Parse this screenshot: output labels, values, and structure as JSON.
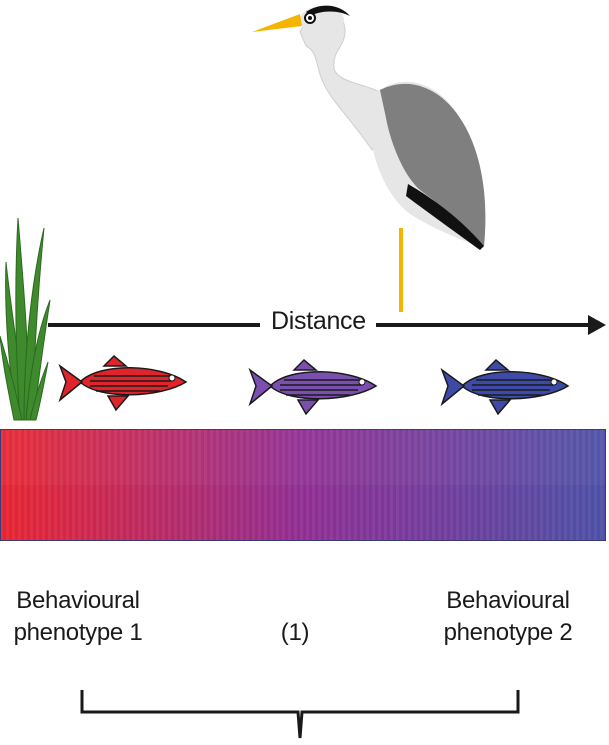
{
  "axis": {
    "label": "Distance"
  },
  "phenotypes": {
    "left": [
      "Behavioural",
      "phenotype 1"
    ],
    "right": [
      "Behavioural",
      "phenotype 2"
    ],
    "middle": "(1)"
  },
  "gradient": {
    "start_color": "#e8232f",
    "middle_color": "#8f2d93",
    "end_color": "#4c4fa6"
  },
  "fish": [
    {
      "name": "red-fish",
      "body": "#e0242c",
      "stroke": "#1a1a1a"
    },
    {
      "name": "purple-fish",
      "body": "#7a4fb0",
      "stroke": "#1a1a1a"
    },
    {
      "name": "blue-fish",
      "body": "#3d4aa8",
      "stroke": "#1a1a1a"
    }
  ],
  "heron": {
    "name": "heron-icon",
    "wing_color": "#7f7f7f",
    "body_color": "#e6e6e6",
    "beak_color": "#f4b400",
    "leg_color": "#f4b400"
  },
  "plant": {
    "name": "water-plant-icon",
    "color": "#3e8a2c"
  }
}
